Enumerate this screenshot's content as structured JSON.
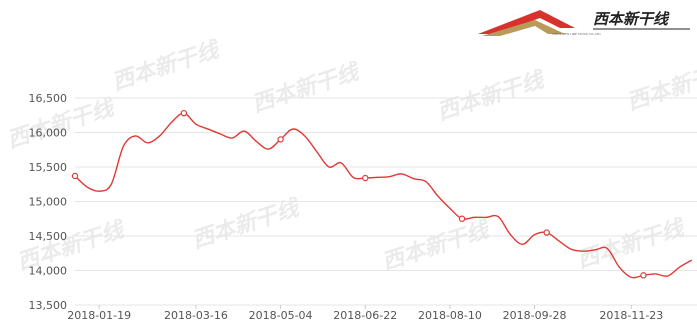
{
  "brand": {
    "name": "西本新干线",
    "subtitle": "XIBEN NEW LINE STOCK CO.,LTD",
    "colors": {
      "red": "#d8322d",
      "gold": "#b89a5a",
      "dark": "#2b2b2b"
    }
  },
  "watermark_text": "西本新干线",
  "chart_data": {
    "type": "line",
    "title": "",
    "xlabel": "",
    "ylabel": "",
    "ylim": [
      13500,
      16500
    ],
    "yticks": [
      13500,
      14000,
      14500,
      15000,
      15500,
      16000,
      16500
    ],
    "ytick_labels": [
      "13,500",
      "14,000",
      "14,500",
      "15,000",
      "15,500",
      "16,000",
      "16,500"
    ],
    "xtick_labels": [
      "2018-01-19",
      "2018-03-16",
      "2018-05-04",
      "2018-06-22",
      "2018-08-10",
      "2018-09-28",
      "2018-11-23"
    ],
    "grid": true,
    "line_color": "#e03a36",
    "series": [
      {
        "x": [
          "2018-01-05",
          "2018-01-12",
          "2018-01-19",
          "2018-01-26",
          "2018-02-02",
          "2018-02-09",
          "2018-02-16",
          "2018-02-23",
          "2018-03-02",
          "2018-03-09",
          "2018-03-16",
          "2018-03-23",
          "2018-03-30",
          "2018-04-06",
          "2018-04-13",
          "2018-04-20",
          "2018-04-27",
          "2018-05-04",
          "2018-05-11",
          "2018-05-18",
          "2018-05-25",
          "2018-06-01",
          "2018-06-08",
          "2018-06-15",
          "2018-06-22",
          "2018-06-29",
          "2018-07-06",
          "2018-07-13",
          "2018-07-20",
          "2018-07-27",
          "2018-08-03",
          "2018-08-10",
          "2018-08-17",
          "2018-08-24",
          "2018-08-31",
          "2018-09-07",
          "2018-09-14",
          "2018-09-21",
          "2018-09-28",
          "2018-10-05",
          "2018-10-12",
          "2018-10-19",
          "2018-10-26",
          "2018-11-02",
          "2018-11-09",
          "2018-11-16",
          "2018-11-23",
          "2018-11-30",
          "2018-12-07",
          "2018-12-14",
          "2018-12-21",
          "2018-12-28"
        ],
        "y": [
          15370,
          15210,
          15150,
          15250,
          15800,
          15950,
          15850,
          15950,
          16150,
          16280,
          16120,
          16050,
          15980,
          15920,
          16020,
          15870,
          15760,
          15900,
          16050,
          15950,
          15720,
          15500,
          15560,
          15350,
          15340,
          15350,
          15360,
          15400,
          15330,
          15290,
          15080,
          14900,
          14750,
          14770,
          14770,
          14780,
          14520,
          14380,
          14520,
          14550,
          14430,
          14310,
          14280,
          14300,
          14320,
          14050,
          13900,
          13930,
          13950,
          13920,
          14050,
          14150
        ],
        "markers_at": [
          "2018-01-05",
          "2018-03-09",
          "2018-05-04",
          "2018-06-22",
          "2018-08-17",
          "2018-10-05",
          "2018-11-30"
        ]
      }
    ]
  }
}
